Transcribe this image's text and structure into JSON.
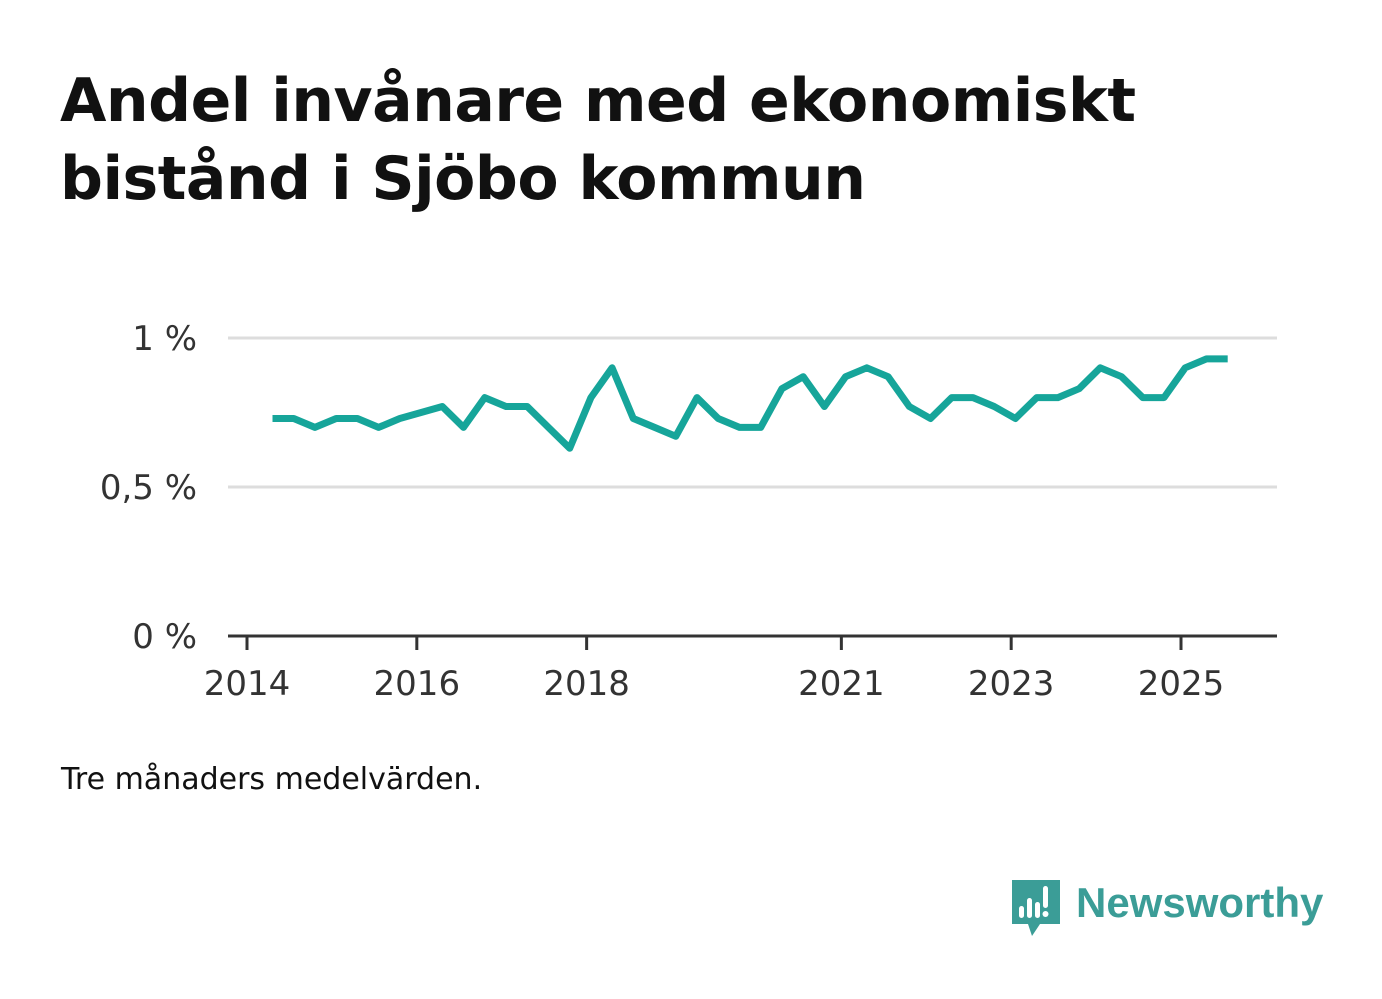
{
  "title": "Andel invånare med ekonomiskt bistånd i Sjöbo kommun",
  "note": "Tre månaders medelvärden.",
  "brand": {
    "name": "Newsworthy",
    "color": "#3b9d97",
    "icon": "newsworthy-bar-chart-icon"
  },
  "colors": {
    "line": "#16a59a",
    "grid": "#dddddd",
    "axis": "#333333"
  },
  "chart_data": {
    "type": "line",
    "title": "Andel invånare med ekonomiskt bistånd i Sjöbo kommun",
    "xlabel": "",
    "ylabel": "",
    "ylim": [
      0,
      1
    ],
    "xlim": [
      2014.0,
      2026.15
    ],
    "grid": true,
    "y_ticks": [
      {
        "value": 0,
        "label": "0 %"
      },
      {
        "value": 0.5,
        "label": "0,5 %"
      },
      {
        "value": 1,
        "label": "1 %"
      }
    ],
    "x_ticks": [
      {
        "value": 2014,
        "label": "2014"
      },
      {
        "value": 2016,
        "label": "2016"
      },
      {
        "value": 2018,
        "label": "2018"
      },
      {
        "value": 2021,
        "label": "2021"
      },
      {
        "value": 2023,
        "label": "2023"
      },
      {
        "value": 2025,
        "label": "2025"
      }
    ],
    "series": [
      {
        "name": "Andel invånare med ekonomiskt bistånd",
        "x": [
          2014.3,
          2014.55,
          2014.8,
          2015.05,
          2015.3,
          2015.55,
          2015.8,
          2016.05,
          2016.3,
          2016.55,
          2016.8,
          2017.05,
          2017.3,
          2017.55,
          2017.8,
          2018.05,
          2018.3,
          2018.55,
          2018.8,
          2019.05,
          2019.3,
          2019.55,
          2019.8,
          2020.05,
          2020.3,
          2020.55,
          2020.8,
          2021.05,
          2021.3,
          2021.55,
          2021.8,
          2022.05,
          2022.3,
          2022.55,
          2022.8,
          2023.05,
          2023.3,
          2023.55,
          2023.8,
          2024.05,
          2024.3,
          2024.55,
          2024.8,
          2025.05,
          2025.3,
          2025.55
        ],
        "values": [
          0.73,
          0.73,
          0.7,
          0.73,
          0.73,
          0.7,
          0.73,
          0.75,
          0.77,
          0.7,
          0.8,
          0.77,
          0.77,
          0.7,
          0.63,
          0.8,
          0.9,
          0.73,
          0.7,
          0.67,
          0.8,
          0.73,
          0.7,
          0.7,
          0.83,
          0.87,
          0.77,
          0.87,
          0.9,
          0.87,
          0.77,
          0.73,
          0.8,
          0.8,
          0.77,
          0.73,
          0.8,
          0.8,
          0.83,
          0.9,
          0.87,
          0.8,
          0.8,
          0.9,
          0.93,
          0.93
        ]
      }
    ]
  }
}
